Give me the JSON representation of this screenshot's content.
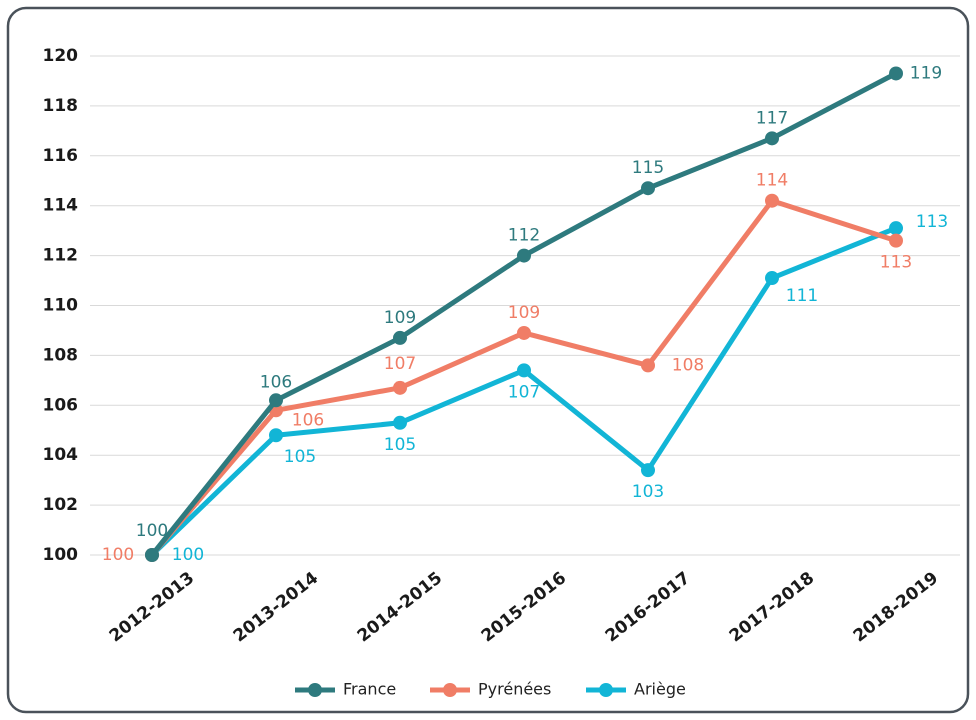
{
  "chart_data": {
    "type": "line",
    "categories": [
      "2012-2013",
      "2013-2014",
      "2014-2015",
      "2015-2016",
      "2016-2017",
      "2017-2018",
      "2018-2019"
    ],
    "series": [
      {
        "name": "France",
        "color": "#2e7a7e",
        "values": [
          100,
          106.2,
          108.7,
          112.0,
          114.7,
          116.7,
          119.3
        ],
        "value_labels": [
          "100",
          "106",
          "109",
          "112",
          "115",
          "117",
          "119"
        ]
      },
      {
        "name": "Pyrénées",
        "color": "#f07d66",
        "values": [
          100,
          105.8,
          106.7,
          108.9,
          107.6,
          114.2,
          112.6
        ],
        "value_labels": [
          "100",
          "106",
          "107",
          "109",
          "108",
          "114",
          "113"
        ]
      },
      {
        "name": "Ariège",
        "color": "#12b5d6",
        "values": [
          100,
          104.8,
          105.3,
          107.4,
          103.4,
          111.1,
          113.1
        ],
        "value_labels": [
          "100",
          "105",
          "105",
          "107",
          "103",
          "111",
          "113"
        ]
      }
    ],
    "ylim": [
      100,
      120
    ],
    "yticks": [
      100,
      102,
      104,
      106,
      108,
      110,
      112,
      114,
      116,
      118,
      120
    ],
    "grid": true,
    "legend": "bottom"
  }
}
